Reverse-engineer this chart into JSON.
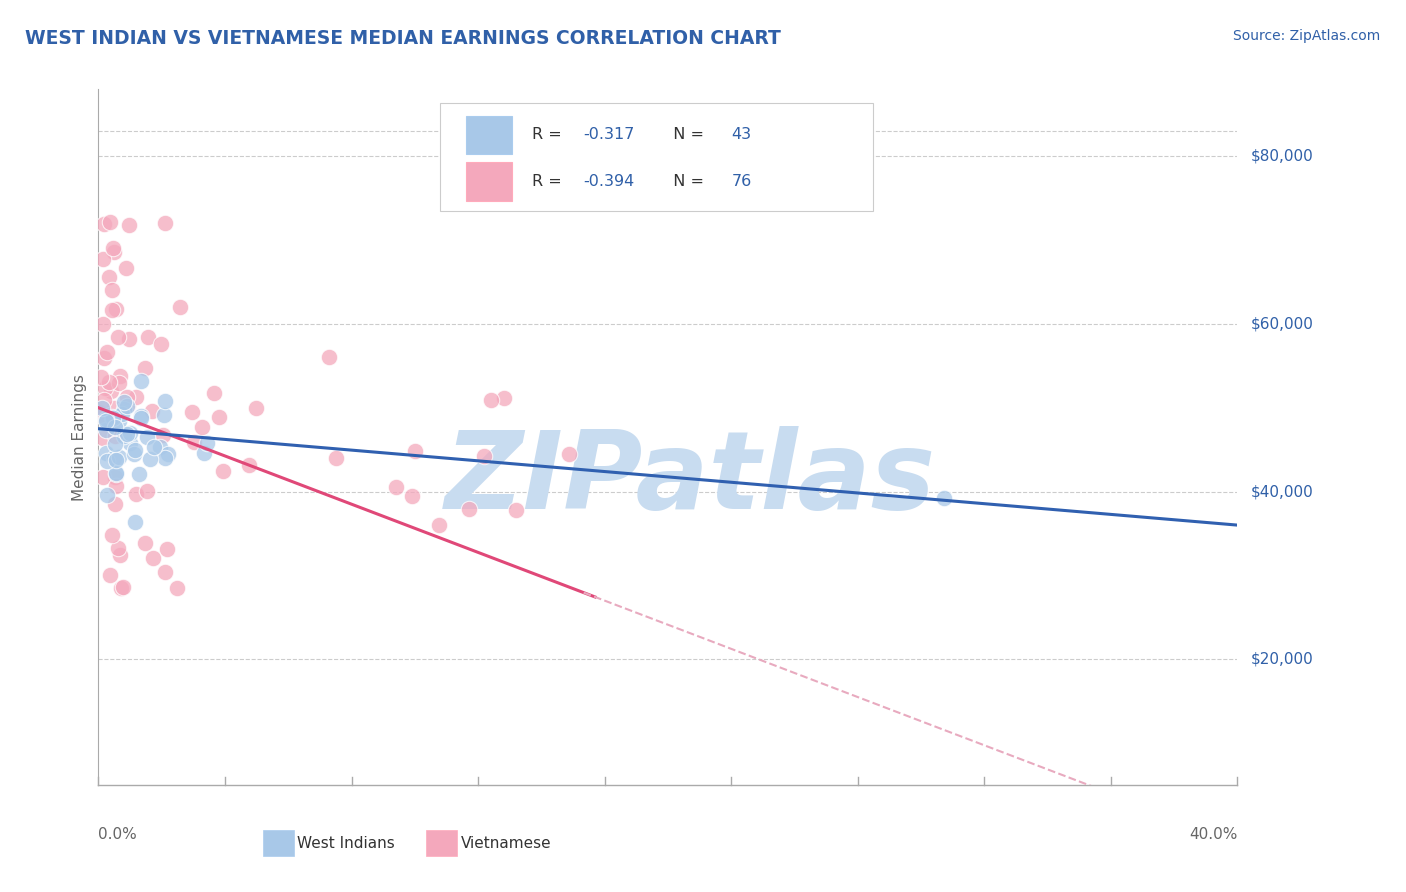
{
  "title": "WEST INDIAN VS VIETNAMESE MEDIAN EARNINGS CORRELATION CHART",
  "source": "Source: ZipAtlas.com",
  "ylabel": "Median Earnings",
  "y_ticks": [
    20000,
    40000,
    60000,
    80000
  ],
  "y_tick_labels": [
    "$20,000",
    "$40,000",
    "$60,000",
    "$80,000"
  ],
  "x_range": [
    0.0,
    0.4
  ],
  "y_range": [
    5000,
    88000
  ],
  "west_indian_color": "#A8C8E8",
  "vietnamese_color": "#F4A8BC",
  "west_indian_line_color": "#3060B0",
  "vietnamese_line_color": "#E04878",
  "dashed_line_color": "#E8AABF",
  "watermark": "ZIPatlas",
  "watermark_color": "#C8DCF0",
  "bottom_label_wi": "West Indians",
  "bottom_label_vn": "Vietnamese",
  "bottom_label_wi_color": "#A8C8E8",
  "bottom_label_vn_color": "#F4A8BC",
  "west_indian_N": 43,
  "vietnamese_N": 76,
  "title_color": "#3060A8",
  "value_color": "#3060A8",
  "source_color": "#3060A8",
  "grid_color": "#CCCCCC",
  "axis_color": "#AAAAAA",
  "legend_r_color": "#333333",
  "legend_val_color": "#3060A8"
}
